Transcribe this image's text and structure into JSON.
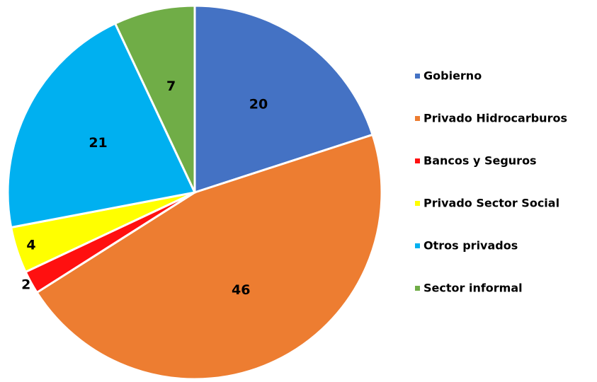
{
  "chart_data": {
    "type": "pie",
    "categories": [
      "Gobierno",
      "Privado Hidrocarburos",
      "Bancos y Seguros",
      "Privado Sector Social",
      "Otros privados",
      "Sector informal"
    ],
    "values": [
      20,
      46,
      2,
      4,
      21,
      7
    ],
    "colors": [
      "#4472c4",
      "#ed7d31",
      "#ff1010",
      "#ffff00",
      "#00b0f0",
      "#70ad47"
    ],
    "legend": "right"
  }
}
